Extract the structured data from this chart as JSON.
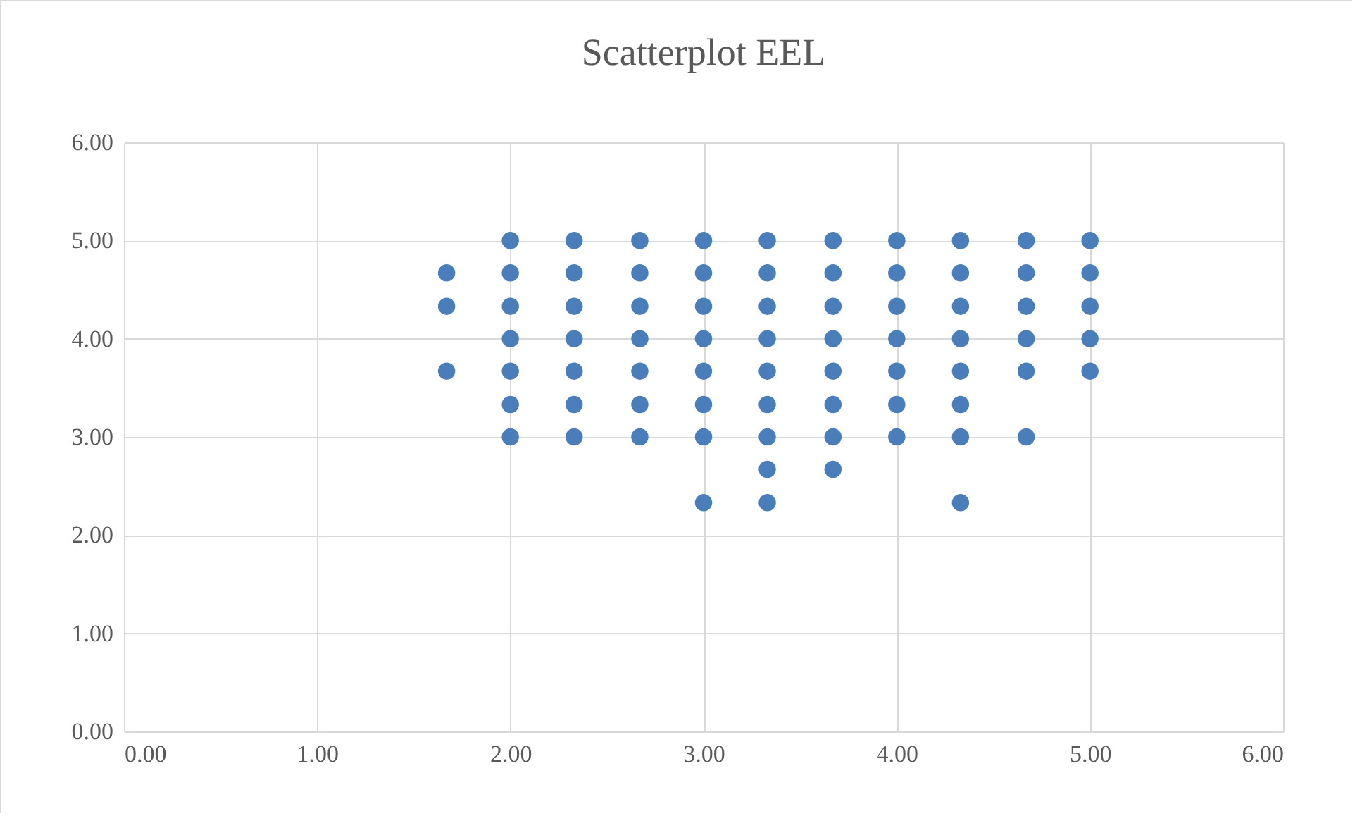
{
  "chart_data": {
    "type": "scatter",
    "title": "Scatterplot EEL",
    "color": "#4a7ebb",
    "marker": "circle",
    "grid": true,
    "x": [
      1.67,
      1.67,
      1.67,
      2,
      2,
      2,
      2,
      2,
      2,
      2,
      2.33,
      2.33,
      2.33,
      2.33,
      2.33,
      2.33,
      2.33,
      2.67,
      2.67,
      2.67,
      2.67,
      2.67,
      2.67,
      2.67,
      3,
      3,
      3,
      3,
      3,
      3,
      3,
      3,
      3.33,
      3.33,
      3.33,
      3.33,
      3.33,
      3.33,
      3.33,
      3.33,
      3.33,
      3.67,
      3.67,
      3.67,
      3.67,
      3.67,
      3.67,
      3.67,
      3.67,
      4,
      4,
      4,
      4,
      4,
      4,
      4,
      4.33,
      4.33,
      4.33,
      4.33,
      4.33,
      4.33,
      4.33,
      4.33,
      4.67,
      4.67,
      4.67,
      4.67,
      4.67,
      4.67,
      5,
      5,
      5,
      5,
      5
    ],
    "values": [
      4.67,
      4.33,
      3.67,
      5,
      4.67,
      4.33,
      4,
      3.67,
      3.33,
      3,
      5,
      4.67,
      4.33,
      4,
      3.67,
      3.33,
      3,
      5,
      4.67,
      4.33,
      4,
      3.67,
      3.33,
      3,
      5,
      4.67,
      4.33,
      4,
      3.67,
      3.33,
      3,
      2.33,
      5,
      4.67,
      4.33,
      4,
      3.67,
      3.33,
      3,
      2.67,
      2.33,
      5,
      4.67,
      4.33,
      4,
      3.67,
      3.33,
      3,
      2.67,
      5,
      4.67,
      4.33,
      4,
      3.67,
      3.33,
      3,
      5,
      4.67,
      4.33,
      4,
      3.67,
      3.33,
      3,
      2.33,
      5,
      4.67,
      4.33,
      4,
      3.67,
      3,
      5,
      4.67,
      4.33,
      4,
      3.67
    ],
    "xlim": [
      0,
      6
    ],
    "ylim": [
      0,
      6
    ],
    "xticks": [
      {
        "value": 0,
        "label": "0.00"
      },
      {
        "value": 1,
        "label": "1.00"
      },
      {
        "value": 2,
        "label": "2.00"
      },
      {
        "value": 3,
        "label": "3.00"
      },
      {
        "value": 4,
        "label": "4.00"
      },
      {
        "value": 5,
        "label": "5.00"
      },
      {
        "value": 6,
        "label": "6.00"
      }
    ],
    "yticks": [
      {
        "value": 0,
        "label": "0.00"
      },
      {
        "value": 1,
        "label": "1.00"
      },
      {
        "value": 2,
        "label": "2.00"
      },
      {
        "value": 3,
        "label": "3.00"
      },
      {
        "value": 4,
        "label": "4.00"
      },
      {
        "value": 5,
        "label": "5.00"
      },
      {
        "value": 6,
        "label": "6.00"
      }
    ]
  }
}
